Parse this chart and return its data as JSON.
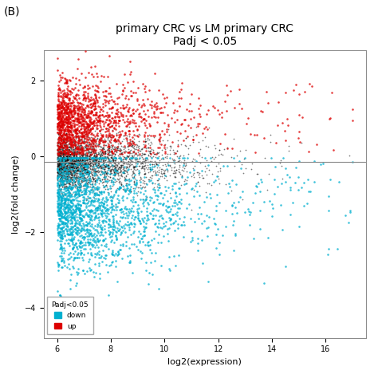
{
  "title_line1": "primary CRC vs LM primary CRC",
  "title_line2": "Padj < 0.05",
  "xlabel": "log2(expression)",
  "ylabel": "log2(fold change)",
  "xlim": [
    5.5,
    17.5
  ],
  "ylim": [
    -4.8,
    2.8
  ],
  "hline_y": -0.15,
  "seed": 42,
  "color_black": "#111111",
  "color_red": "#dd0000",
  "color_cyan": "#00b0d0",
  "legend_label_padj": "Padj<0.05",
  "legend_label_down": "down",
  "legend_label_up": "up",
  "title_fontsize": 10,
  "axis_label_fontsize": 8,
  "tick_fontsize": 7,
  "bg_color": "#ffffff",
  "panel_label": "(B)"
}
